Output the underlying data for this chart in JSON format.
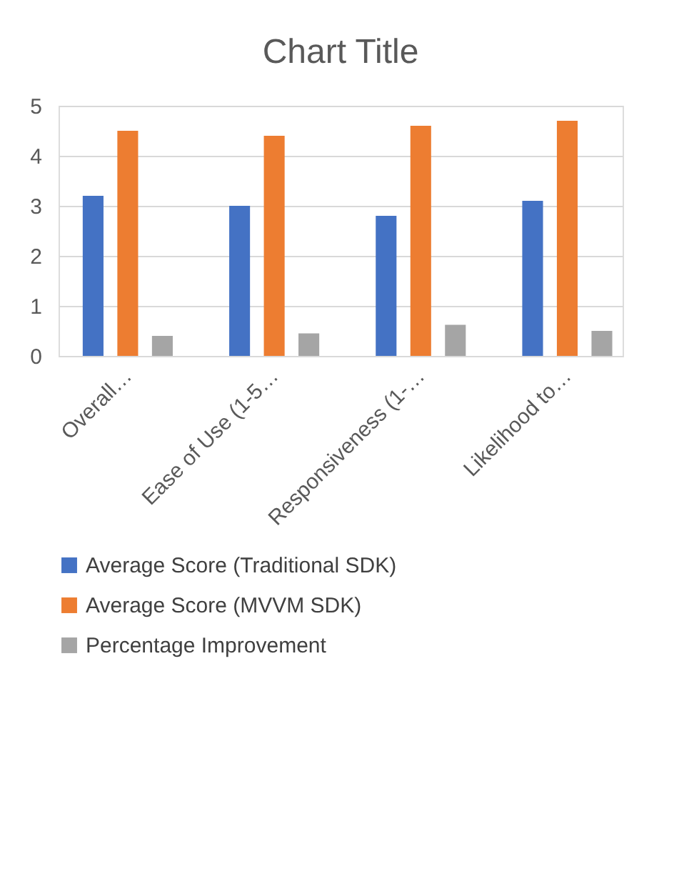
{
  "chart_data": {
    "type": "bar",
    "title": "Chart Title",
    "categories": [
      "Overall…",
      "Ease of Use (1-5…",
      "Responsiveness (1-…",
      "Likelihood to…"
    ],
    "series": [
      {
        "name": "Average Score (Traditional SDK)",
        "color": "#4472c4",
        "values": [
          3.2,
          3.0,
          2.8,
          3.1
        ]
      },
      {
        "name": "Average Score (MVVM SDK)",
        "color": "#ed7d31",
        "values": [
          4.5,
          4.4,
          4.6,
          4.7
        ]
      },
      {
        "name": "Percentage Improvement",
        "color": "#a5a5a5",
        "values": [
          0.4,
          0.45,
          0.62,
          0.5
        ]
      }
    ],
    "ylim": [
      0,
      5
    ],
    "yticks": [
      0,
      1,
      2,
      3,
      4,
      5
    ],
    "grid": "y",
    "legend": "bottom"
  }
}
